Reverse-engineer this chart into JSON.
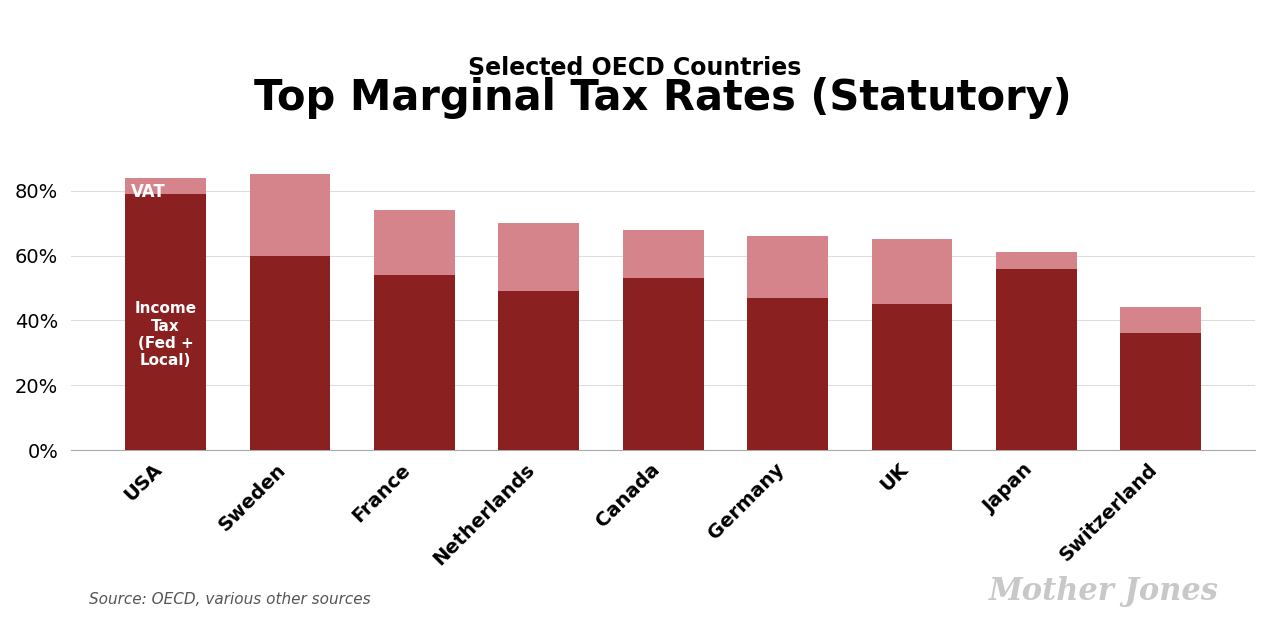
{
  "title": "Top Marginal Tax Rates (Statutory)",
  "subtitle": "Selected OECD Countries",
  "source": "Source: OECD, various other sources",
  "watermark": "Mother Jones",
  "countries": [
    "USA",
    "Sweden",
    "France",
    "Netherlands",
    "Canada",
    "Germany",
    "UK",
    "Japan",
    "Switzerland"
  ],
  "income_tax": [
    79,
    60,
    54,
    49,
    53,
    47,
    45,
    56,
    36
  ],
  "vat": [
    5,
    25,
    20,
    21,
    15,
    19,
    20,
    5,
    8
  ],
  "income_tax_color": "#8B2020",
  "vat_color": "#D4848A",
  "background_color": "#FFFFFF",
  "title_fontsize": 30,
  "subtitle_fontsize": 17,
  "tick_fontsize": 14,
  "label_text": "Income\nTax\n(Fed +\nLocal)",
  "vat_label": "VAT",
  "ylim": [
    0,
    92
  ],
  "yticks": [
    0,
    20,
    40,
    60,
    80
  ],
  "bar_width": 0.65,
  "grid_color": "#DDDDDD",
  "source_fontsize": 11,
  "watermark_fontsize": 22
}
